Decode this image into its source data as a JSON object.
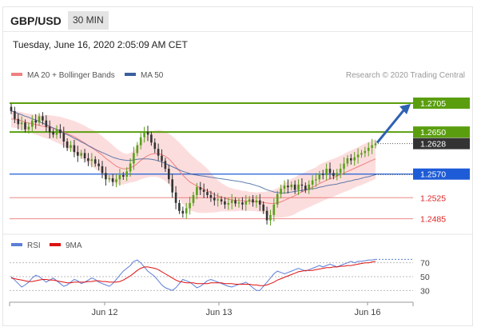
{
  "header": {
    "symbol": "GBP/USD",
    "timeframe": "30 MIN"
  },
  "datetime": "Tuesday, June 16, 2020 2:05:09 AM CET",
  "credit": "Research © 2020 Trading Central",
  "colors": {
    "resistance": "#5a9e0f",
    "support_blue": "#1e5bd6",
    "support_red": "#e86060",
    "ma20": "#ef8080",
    "ma50": "#3a5f9e",
    "bollinger_fill": "#fcd7d7",
    "rsi": "#5b7ed6",
    "rsi_ma": "#dd1111",
    "candle_up": "#5aa01a",
    "candle_down": "#333333",
    "arrow": "#2e62b3",
    "last_price_bg": "#333333"
  },
  "chart_data": [
    {
      "type": "candlestick",
      "legend": [
        {
          "name": "MA 20 + Bollinger Bands",
          "color": "#ef8080"
        },
        {
          "name": "MA 50",
          "color": "#3a5f9e"
        }
      ],
      "legend_position": "top-left",
      "ylim": [
        1.246,
        1.274
      ],
      "x_ticks": [
        "Jun 12",
        "Jun 13",
        "Jun 16"
      ],
      "levels": [
        {
          "value": 1.2705,
          "label": "1.2705",
          "kind": "resistance"
        },
        {
          "value": 1.265,
          "label": "1.2650",
          "kind": "resistance"
        },
        {
          "value": 1.257,
          "label": "1.2570",
          "kind": "pivot"
        },
        {
          "value": 1.2525,
          "label": "1.2525",
          "kind": "support"
        },
        {
          "value": 1.2485,
          "label": "1.2485",
          "kind": "support"
        }
      ],
      "last_price": {
        "value": 1.2628,
        "label": "1.2628"
      },
      "close": [
        1.269,
        1.2675,
        1.2665,
        1.2668,
        1.2655,
        1.266,
        1.2672,
        1.2668,
        1.268,
        1.2672,
        1.266,
        1.265,
        1.2645,
        1.2655,
        1.2648,
        1.2632,
        1.262,
        1.2625,
        1.2612,
        1.2605,
        1.261,
        1.26,
        1.2595,
        1.2598,
        1.259,
        1.2585,
        1.2572,
        1.256,
        1.2562,
        1.2555,
        1.256,
        1.2568,
        1.2565,
        1.2575,
        1.259,
        1.261,
        1.2625,
        1.264,
        1.265,
        1.2645,
        1.263,
        1.2618,
        1.2605,
        1.2595,
        1.258,
        1.256,
        1.2535,
        1.2515,
        1.25,
        1.2495,
        1.2505,
        1.2515,
        1.253,
        1.2545,
        1.254,
        1.2536,
        1.253,
        1.2525,
        1.252,
        1.2522,
        1.2518,
        1.2512,
        1.2515,
        1.252,
        1.2514,
        1.2516,
        1.2512,
        1.2518,
        1.2522,
        1.2516,
        1.252,
        1.2512,
        1.25,
        1.2482,
        1.2492,
        1.2512,
        1.2532,
        1.2542,
        1.2548,
        1.2545,
        1.255,
        1.254,
        1.255,
        1.2548,
        1.254,
        1.255,
        1.2558,
        1.256,
        1.257,
        1.2568,
        1.258,
        1.2572,
        1.2566,
        1.2572,
        1.258,
        1.259,
        1.26,
        1.2596,
        1.2602,
        1.2607,
        1.261,
        1.2614,
        1.262,
        1.2625,
        1.2628
      ],
      "ma20": [
        1.2675,
        1.2674,
        1.2673,
        1.2671,
        1.2669,
        1.2667,
        1.2666,
        1.2664,
        1.2663,
        1.2661,
        1.266,
        1.2659,
        1.2657,
        1.2655,
        1.2653,
        1.265,
        1.2647,
        1.2644,
        1.2641,
        1.2637,
        1.2633,
        1.2629,
        1.2624,
        1.262,
        1.2616,
        1.2611,
        1.2606,
        1.26,
        1.2595,
        1.259,
        1.2585,
        1.2582,
        1.258,
        1.258,
        1.2582,
        1.2585,
        1.259,
        1.2596,
        1.2601,
        1.2605,
        1.2608,
        1.2609,
        1.2609,
        1.2607,
        1.2604,
        1.2599,
        1.2592,
        1.2584,
        1.2576,
        1.2568,
        1.2561,
        1.2555,
        1.2551,
        1.2547,
        1.2544,
        1.2541,
        1.2538,
        1.2535,
        1.2531,
        1.2528,
        1.2526,
        1.2524,
        1.2522,
        1.2521,
        1.252,
        1.252,
        1.2519,
        1.2519,
        1.2518,
        1.2518,
        1.2517,
        1.2517,
        1.2516,
        1.2515,
        1.2514,
        1.2514,
        1.2515,
        1.2517,
        1.252,
        1.2523,
        1.2526,
        1.2529,
        1.2533,
        1.2536,
        1.2539,
        1.2542,
        1.2545,
        1.2548,
        1.2552,
        1.2555,
        1.2558,
        1.2561,
        1.2563,
        1.2566,
        1.2569,
        1.2572,
        1.2575,
        1.2578,
        1.2581,
        1.2584,
        1.2587,
        1.259,
        1.2593,
        1.2596,
        1.2599
      ],
      "bb_width": [
        0.0016,
        0.0016,
        0.0016,
        0.0017,
        0.0017,
        0.0018,
        0.0018,
        0.0019,
        0.002,
        0.0021,
        0.0022,
        0.0023,
        0.0024,
        0.0025,
        0.0026,
        0.0027,
        0.0028,
        0.0029,
        0.003,
        0.0031,
        0.0032,
        0.0033,
        0.0034,
        0.0035,
        0.0036,
        0.0036,
        0.0036,
        0.0036,
        0.0036,
        0.0035,
        0.0034,
        0.0032,
        0.003,
        0.0028,
        0.0028,
        0.003,
        0.0033,
        0.0036,
        0.0039,
        0.0041,
        0.0043,
        0.0044,
        0.0045,
        0.0046,
        0.0047,
        0.0048,
        0.005,
        0.0052,
        0.0054,
        0.0055,
        0.0055,
        0.0054,
        0.0052,
        0.005,
        0.0048,
        0.0045,
        0.0042,
        0.0038,
        0.0034,
        0.003,
        0.0027,
        0.0025,
        0.0023,
        0.0022,
        0.0021,
        0.002,
        0.0019,
        0.0019,
        0.0018,
        0.0018,
        0.0018,
        0.0019,
        0.002,
        0.0022,
        0.0024,
        0.0026,
        0.0028,
        0.003,
        0.0032,
        0.0034,
        0.0035,
        0.0035,
        0.0035,
        0.0035,
        0.0035,
        0.0035,
        0.0035,
        0.0035,
        0.0036,
        0.0036,
        0.0036,
        0.0036,
        0.0036,
        0.0036,
        0.0036,
        0.0036,
        0.0037,
        0.0037,
        0.0037,
        0.0037,
        0.0038,
        0.0038,
        0.0038,
        0.0038,
        0.0038
      ],
      "ma50": [
        1.269,
        1.2688,
        1.2685,
        1.2683,
        1.268,
        1.2678,
        1.2675,
        1.2673,
        1.267,
        1.2667,
        1.2664,
        1.2661,
        1.2658,
        1.2655,
        1.2652,
        1.2648,
        1.2645,
        1.2642,
        1.2638,
        1.2635,
        1.2631,
        1.2628,
        1.2624,
        1.2621,
        1.2617,
        1.2614,
        1.2611,
        1.2608,
        1.2605,
        1.2602,
        1.26,
        1.2598,
        1.2597,
        1.2596,
        1.2596,
        1.2597,
        1.2598,
        1.2599,
        1.2599,
        1.2599,
        1.2598,
        1.2597,
        1.2595,
        1.2593,
        1.259,
        1.2587,
        1.2584,
        1.2581,
        1.2578,
        1.2575,
        1.2573,
        1.2571,
        1.2569,
        1.2568,
        1.2567,
        1.2566,
        1.2565,
        1.2564,
        1.2563,
        1.2562,
        1.2561,
        1.256,
        1.2559,
        1.2558,
        1.2557,
        1.2556,
        1.2555,
        1.2553,
        1.2552,
        1.255,
        1.2548,
        1.2546,
        1.2543,
        1.254,
        1.2538,
        1.2536,
        1.2535,
        1.2534,
        1.2534,
        1.2535,
        1.2536,
        1.2537,
        1.2538,
        1.2539,
        1.254,
        1.2541,
        1.2542,
        1.2543,
        1.2545,
        1.2546,
        1.2548,
        1.2549,
        1.255,
        1.2551,
        1.2553,
        1.2554,
        1.2556,
        1.2557,
        1.2559,
        1.256,
        1.2562,
        1.2564,
        1.2565,
        1.2567,
        1.2569
      ]
    },
    {
      "type": "line",
      "legend": [
        {
          "name": "RSI",
          "color": "#5b7ed6"
        },
        {
          "name": "9MA",
          "color": "#dd1111"
        }
      ],
      "legend_position": "top-left",
      "ylim": [
        20,
        80
      ],
      "y_ticks": [
        70,
        50,
        30
      ],
      "series": [
        {
          "name": "RSI",
          "values": [
            50,
            45,
            40,
            35,
            38,
            42,
            48,
            52,
            50,
            46,
            42,
            45,
            48,
            44,
            40,
            36,
            38,
            42,
            46,
            44,
            40,
            42,
            45,
            48,
            46,
            42,
            40,
            38,
            36,
            40,
            46,
            52,
            58,
            62,
            66,
            72,
            74,
            70,
            64,
            58,
            54,
            50,
            44,
            38,
            34,
            32,
            30,
            34,
            40,
            46,
            44,
            42,
            38,
            34,
            36,
            40,
            44,
            46,
            44,
            42,
            40,
            38,
            36,
            35,
            37,
            39,
            40,
            42,
            38,
            34,
            30,
            30,
            36,
            42,
            48,
            54,
            58,
            56,
            54,
            56,
            58,
            60,
            62,
            60,
            58,
            60,
            62,
            64,
            66,
            64,
            66,
            68,
            66,
            64,
            66,
            68,
            70,
            72,
            70,
            72,
            72,
            73,
            74,
            74,
            75
          ]
        },
        {
          "name": "9MA",
          "values": [
            48,
            47,
            46,
            45,
            44,
            43,
            43,
            44,
            45,
            46,
            46,
            45,
            45,
            44,
            43,
            42,
            41,
            41,
            42,
            42,
            42,
            42,
            43,
            43,
            44,
            44,
            43,
            43,
            42,
            42,
            42,
            43,
            45,
            48,
            51,
            55,
            59,
            62,
            64,
            64,
            63,
            62,
            60,
            57,
            54,
            51,
            48,
            45,
            43,
            42,
            41,
            41,
            41,
            40,
            40,
            40,
            40,
            41,
            41,
            41,
            41,
            40,
            40,
            40,
            39,
            39,
            39,
            39,
            39,
            38,
            38,
            37,
            37,
            38,
            40,
            42,
            45,
            47,
            49,
            51,
            53,
            55,
            57,
            58,
            59,
            59,
            59,
            60,
            61,
            62,
            63,
            63,
            64,
            64,
            65,
            65,
            66,
            66,
            67,
            68,
            69,
            70,
            70,
            71,
            72
          ]
        }
      ],
      "projection": 75
    }
  ]
}
